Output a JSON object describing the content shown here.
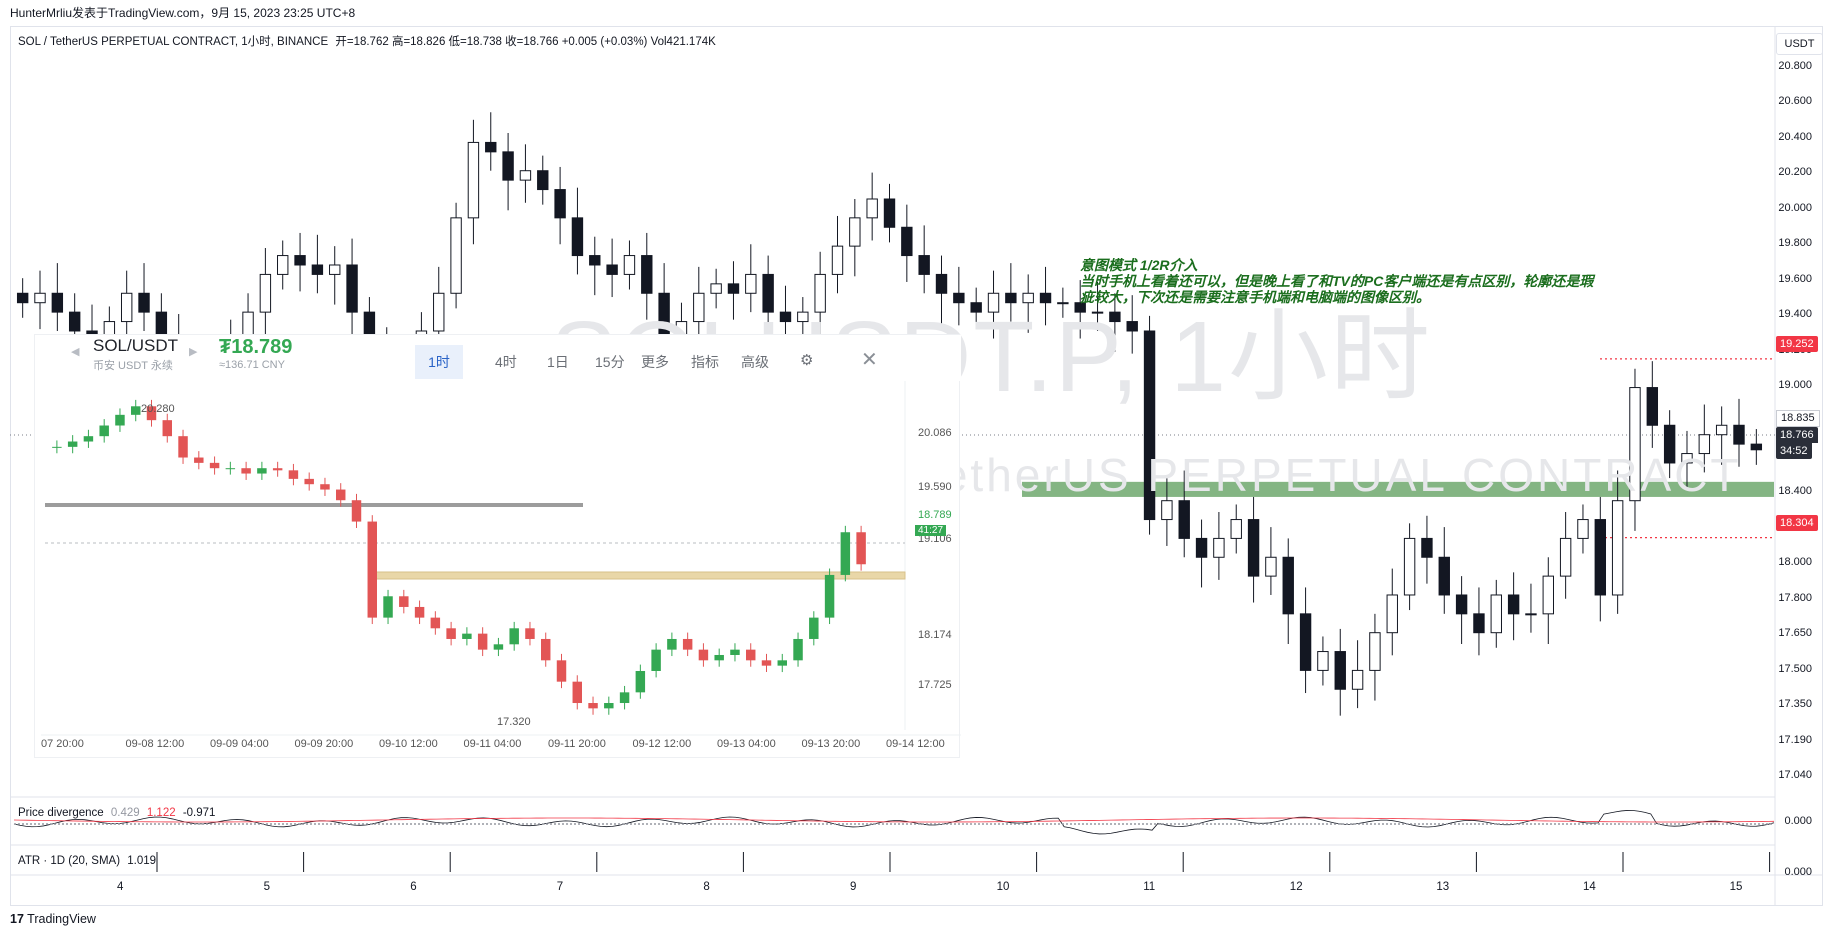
{
  "topbar": {
    "credit": "HunterMrliu发表于TradingView.com，9月 15, 2023 23:25 UTC+8"
  },
  "legend": {
    "symbol": "SOL / TetherUS PERPETUAL CONTRACT, 1小时, BINANCE",
    "ohlc": "开=18.762  高=18.826  低=18.738  收=18.766  +0.005 (+0.03%)  Vol421.174K"
  },
  "currency_button": "USDT",
  "watermark": {
    "big": "SOLUSDT.P, 1小时",
    "small": "SOL / TetherUS PERPETUAL CONTRACT"
  },
  "annotation": {
    "line1": "意图模式 1/2R介入",
    "line2": "当时手机上看着还可以，但是晚上看了和TV的PC客户端还是有点区别，轮廓还是瑕",
    "line3": "疵较大，下次还是需要注意手机端和电脑端的图像区别。"
  },
  "price_axis": {
    "ticks": [
      "20.800",
      "20.600",
      "20.400",
      "20.200",
      "20.000",
      "19.800",
      "19.600",
      "19.400",
      "19.200",
      "19.000",
      "18.800",
      "18.600",
      "18.400",
      "18.200",
      "18.000",
      "17.800",
      "17.650",
      "17.500",
      "17.350",
      "17.190",
      "17.040"
    ],
    "label_high": "19.252",
    "label_low": "18.304",
    "label_mid": "18.835",
    "last_price": "18.766",
    "countdown": "34:52",
    "colors": {
      "high_tag": "#f23645",
      "low_tag": "#f23645",
      "last_tag": "#2a2e39",
      "zone": "#5b9c5a"
    }
  },
  "time_axis": {
    "labels": [
      "4",
      "5",
      "6",
      "7",
      "8",
      "9",
      "10",
      "11",
      "12",
      "13",
      "14",
      "15"
    ]
  },
  "indicators": {
    "divergence": {
      "name": "Price divergence",
      "v1": "0.429",
      "v2": "1.122",
      "v3": "-0.971",
      "axis": "0.000"
    },
    "atr": {
      "name": "ATR · 1D (20, SMA)",
      "value": "1.019",
      "axis": "0.000"
    }
  },
  "footer": {
    "brand": "TradingView"
  },
  "inset": {
    "pair": "SOL/USDT",
    "sub": "币安 USDT 永续",
    "price": "₮18.789",
    "cny": "≈136.71 CNY",
    "tabs": [
      "1时",
      "4时",
      "1日",
      "15分",
      "更多",
      "指标",
      "高级"
    ],
    "axis": [
      "20.086",
      "19.590",
      "19.106",
      "18.174",
      "17.725"
    ],
    "last_price": "18.789",
    "countdown": "41:27",
    "high_label": "20.280",
    "low_label": "17.320",
    "times": [
      "07 20:00",
      "09-08 12:00",
      "09-09 04:00",
      "09-09 20:00",
      "09-10 12:00",
      "09-11 04:00",
      "09-11 20:00",
      "09-12 12:00",
      "09-13 04:00",
      "09-13 20:00",
      "09-14 12:00"
    ]
  },
  "chart_data": {
    "type": "candlestick",
    "title": "SOL / TetherUS PERPETUAL CONTRACT, 1小时, BINANCE",
    "x_labels": [
      "4",
      "5",
      "6",
      "7",
      "8",
      "9",
      "10",
      "11",
      "12",
      "13",
      "14",
      "15"
    ],
    "ylim": [
      17.0,
      20.85
    ],
    "closes": [
      19.55,
      19.6,
      19.5,
      19.4,
      19.35,
      19.45,
      19.6,
      19.5,
      19.35,
      19.25,
      19.2,
      19.1,
      19.3,
      19.5,
      19.7,
      19.8,
      19.75,
      19.7,
      19.75,
      19.5,
      19.3,
      19.2,
      19.15,
      19.4,
      19.6,
      20.0,
      20.4,
      20.35,
      20.2,
      20.25,
      20.15,
      20.0,
      19.8,
      19.75,
      19.7,
      19.8,
      19.6,
      19.3,
      19.45,
      19.6,
      19.65,
      19.6,
      19.7,
      19.5,
      19.45,
      19.5,
      19.7,
      19.85,
      20.0,
      20.1,
      19.95,
      19.8,
      19.7,
      19.6,
      19.55,
      19.5,
      19.6,
      19.55,
      19.6,
      19.55,
      19.55,
      19.5,
      19.5,
      19.45,
      19.4,
      18.4,
      18.5,
      18.3,
      18.2,
      18.3,
      18.4,
      18.1,
      18.2,
      17.9,
      17.6,
      17.7,
      17.5,
      17.6,
      17.8,
      18.0,
      18.3,
      18.2,
      18.0,
      17.9,
      17.8,
      18.0,
      17.9,
      17.9,
      18.1,
      18.3,
      18.4,
      18.0,
      18.5,
      19.1,
      18.9,
      18.7,
      18.75,
      18.85,
      18.9,
      18.8,
      18.77
    ],
    "zones": [
      {
        "name": "support",
        "from": 18.52,
        "to": 18.6
      }
    ],
    "levels": [
      19.252,
      18.304
    ]
  }
}
